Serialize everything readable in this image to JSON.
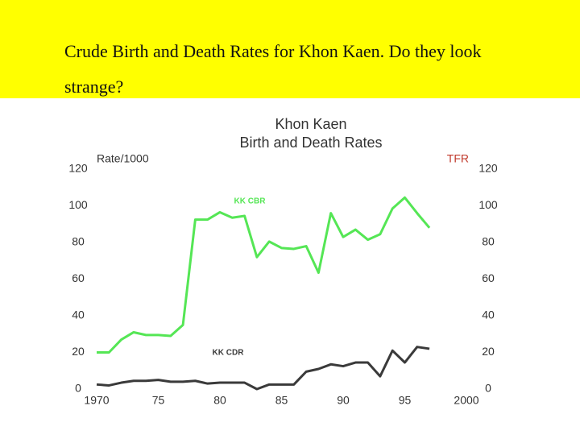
{
  "slide_title": "Crude Birth and Death Rates for Khon Kaen.  Do they look strange?",
  "chart_data": {
    "type": "line",
    "title": "Khon Kaen",
    "subtitle": "Birth and Death Rates",
    "ylabel": "Rate/1000",
    "y2label": "TFR",
    "x": [
      1970,
      1971,
      1972,
      1973,
      1974,
      1975,
      1976,
      1977,
      1978,
      1979,
      1980,
      1981,
      1982,
      1983,
      1984,
      1985,
      1986,
      1987,
      1988,
      1989,
      1990,
      1991,
      1992,
      1993,
      1994,
      1995,
      1996,
      1997
    ],
    "series": [
      {
        "name": "KK CBR",
        "color": "#55e655",
        "values": [
          20,
          20,
          27,
          31,
          29.5,
          29.5,
          29,
          35,
          92.5,
          92.5,
          96.5,
          93.5,
          94.5,
          72,
          80.5,
          77,
          76.5,
          78,
          63.5,
          96,
          83,
          87,
          81.5,
          84.5,
          98.5,
          104.5,
          96,
          88
        ]
      },
      {
        "name": "KK CDR",
        "color": "#3a3a3a",
        "values": [
          2.5,
          2,
          3.5,
          4.5,
          4.5,
          5,
          4,
          4,
          4.5,
          3,
          3.5,
          3.5,
          3.5,
          0,
          2.5,
          2.5,
          2.5,
          9.5,
          11,
          13.5,
          12.5,
          14.5,
          14.5,
          7,
          21,
          14.5,
          23,
          22
        ]
      }
    ],
    "xlim": [
      1970,
      2000
    ],
    "xticks": [
      1970,
      {
        "value": 1975,
        "label": "75"
      },
      {
        "value": 1980,
        "label": "80"
      },
      {
        "value": 1985,
        "label": "85"
      },
      {
        "value": 1990,
        "label": "90"
      },
      {
        "value": 1995,
        "label": "95"
      },
      2000
    ],
    "ylim": [
      0,
      120
    ],
    "yticks": [
      0,
      20,
      40,
      60,
      80,
      100,
      120
    ],
    "y2lim": [
      0,
      120
    ],
    "y2ticks": [
      0,
      20,
      40,
      60,
      80,
      100,
      120
    ]
  }
}
